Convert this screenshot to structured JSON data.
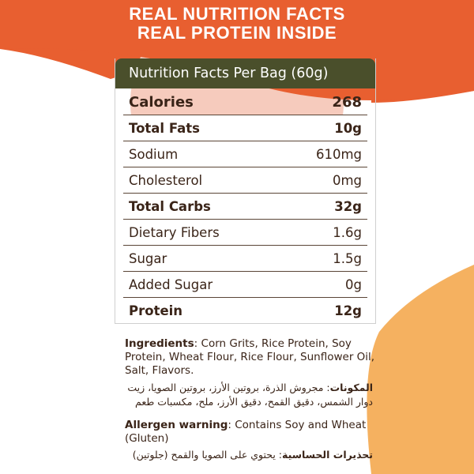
{
  "colors": {
    "orange": "#e85f30",
    "peach": "#f5b160",
    "olive": "#4a4f2b",
    "pink": "#f6cbbd",
    "text": "#3a2418"
  },
  "headline": {
    "line1": "REAL NUTRITION FACTS",
    "line2": "REAL PROTEIN INSIDE"
  },
  "table": {
    "title": "Nutrition Facts Per Bag (60g)",
    "rows": [
      {
        "label": "Calories",
        "value": "268"
      },
      {
        "label": "Total Fats",
        "value": "10g"
      },
      {
        "label": "Sodium",
        "value": "610mg"
      },
      {
        "label": "Cholesterol",
        "value": "0mg"
      },
      {
        "label": "Total Carbs",
        "value": "32g"
      },
      {
        "label": "Dietary Fibers",
        "value": "1.6g"
      },
      {
        "label": "Sugar",
        "value": "1.5g"
      },
      {
        "label": "Added Sugar",
        "value": "0g"
      },
      {
        "label": "Protein",
        "value": "12g"
      }
    ]
  },
  "ingredients": {
    "label": "Ingredients",
    "text": ": Corn Grits, Rice Protein, Soy Protein, Wheat Flour, Rice Flour, Sunflower Oil, Salt, Flavors.",
    "ar_label": "المكونات",
    "ar_text": ": مجروش الذرة، بروتين الأرز، بروتين الصويا، زيت دوار الشمس، دقيق القمح، دقيق الأرز، ملح، مكسبات طعم"
  },
  "allergen": {
    "label": "Allergen warning",
    "text": ": Contains Soy and Wheat (Gluten)",
    "ar_label": "تحذيرات الحساسية",
    "ar_text": ": يحتوي على الصويا والقمح (جلوتين)"
  }
}
